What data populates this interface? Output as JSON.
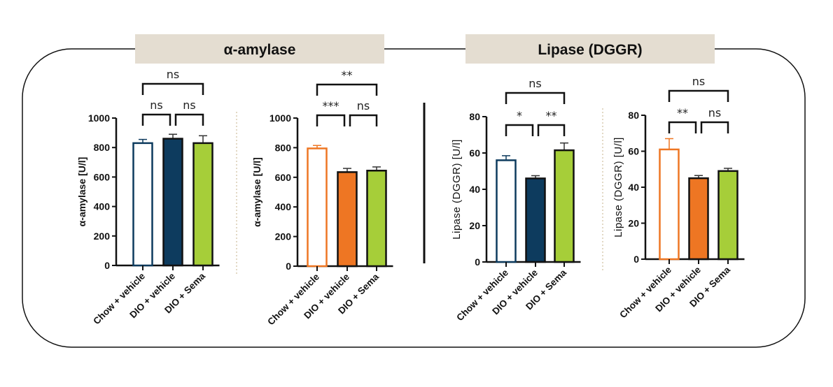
{
  "sections": [
    {
      "title": "α-amylase",
      "background": "#e4ddd1"
    },
    {
      "title": "Lipase (DGGR)",
      "background": "#e4ddd1"
    }
  ],
  "colors": {
    "navy": "#0d3b5e",
    "orange": "#ee7623",
    "green": "#a6ce39",
    "frame": "#111111",
    "separator": "#d8cbb0"
  },
  "chart_data": [
    {
      "type": "bar",
      "ylabel": "α-amylase [U/l]",
      "ylim": [
        0,
        1000
      ],
      "yticks": [
        0,
        200,
        400,
        600,
        800,
        1000
      ],
      "categories": [
        "Chow + vehicle",
        "DIO + vehicle",
        "DIO + Sema"
      ],
      "values": [
        830,
        860,
        830
      ],
      "errors": [
        25,
        30,
        50
      ],
      "bar_styles": [
        "outline-navy",
        "navy",
        "green"
      ],
      "comparisons": [
        {
          "pair": [
            0,
            1
          ],
          "label": "ns"
        },
        {
          "pair": [
            1,
            2
          ],
          "label": "ns"
        },
        {
          "pair": [
            0,
            2
          ],
          "label": "ns"
        }
      ]
    },
    {
      "type": "bar",
      "ylabel": "α-amylase [U/l]",
      "ylim": [
        0,
        1000
      ],
      "yticks": [
        0,
        200,
        400,
        600,
        800,
        1000
      ],
      "categories": [
        "Chow + vehicle",
        "DIO + vehicle",
        "DIO + Sema"
      ],
      "values": [
        795,
        635,
        645
      ],
      "errors": [
        20,
        25,
        25
      ],
      "bar_styles": [
        "outline-orange",
        "orange",
        "green"
      ],
      "comparisons": [
        {
          "pair": [
            0,
            1
          ],
          "label": "***"
        },
        {
          "pair": [
            1,
            2
          ],
          "label": "ns"
        },
        {
          "pair": [
            0,
            2
          ],
          "label": "**"
        }
      ]
    },
    {
      "type": "bar",
      "ylabel": "Lipase (DGGR) [U/l]",
      "ylim": [
        0,
        80
      ],
      "yticks": [
        0,
        20,
        40,
        60,
        80
      ],
      "categories": [
        "Chow + vehicle",
        "DIO + vehicle",
        "DIO + Sema"
      ],
      "values": [
        56,
        46,
        61.5
      ],
      "errors": [
        2.5,
        1.5,
        4
      ],
      "bar_styles": [
        "outline-navy",
        "navy",
        "green"
      ],
      "comparisons": [
        {
          "pair": [
            0,
            1
          ],
          "label": "*"
        },
        {
          "pair": [
            1,
            2
          ],
          "label": "**"
        },
        {
          "pair": [
            0,
            2
          ],
          "label": "ns"
        }
      ]
    },
    {
      "type": "bar",
      "ylabel": "Lipase (DGGR) [U/l]",
      "ylim": [
        0,
        80
      ],
      "yticks": [
        0,
        20,
        40,
        60,
        80
      ],
      "categories": [
        "Chow + vehicle",
        "DIO + vehicle",
        "DIO + Sema"
      ],
      "values": [
        61,
        45,
        49
      ],
      "errors": [
        6,
        1.5,
        1.5
      ],
      "bar_styles": [
        "outline-orange",
        "orange",
        "green"
      ],
      "comparisons": [
        {
          "pair": [
            0,
            1
          ],
          "label": "**"
        },
        {
          "pair": [
            1,
            2
          ],
          "label": "ns"
        },
        {
          "pair": [
            0,
            2
          ],
          "label": "ns"
        }
      ]
    }
  ]
}
